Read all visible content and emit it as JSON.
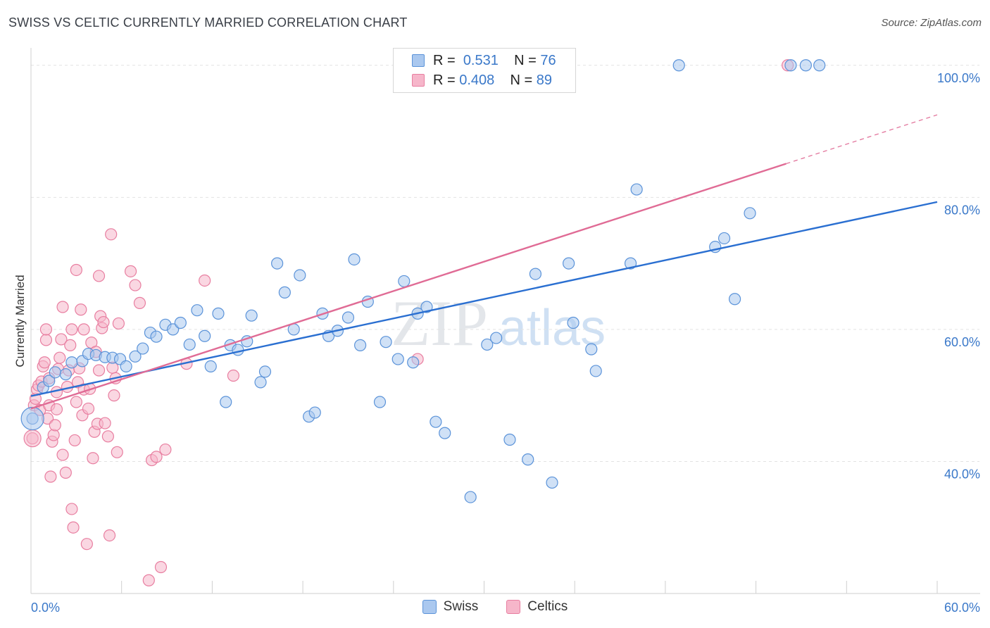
{
  "header": {
    "title": "SWISS VS CELTIC CURRENTLY MARRIED CORRELATION CHART",
    "source": "Source: ZipAtlas.com"
  },
  "legend": {
    "swiss": {
      "r_label": "R =",
      "r_value": "0.531",
      "n_label": "N =",
      "n_value": "76"
    },
    "celtics": {
      "r_label": "R =",
      "r_value": "0.408",
      "n_label": "N =",
      "n_value": "89"
    }
  },
  "bottom_legend": {
    "swiss": "Swiss",
    "celtics": "Celtics"
  },
  "watermark": {
    "zip": "ZIP",
    "atlas": "atlas"
  },
  "colors": {
    "swiss_fill": "#aac8ef",
    "swiss_stroke": "#5b93d9",
    "swiss_line": "#2a6fd1",
    "celtics_fill": "#f6b6ca",
    "celtics_stroke": "#e87ea0",
    "celtics_line": "#e06b95",
    "axis_text": "#3a78c9"
  },
  "chart_data": {
    "type": "scatter",
    "title": "SWISS VS CELTIC CURRENTLY MARRIED CORRELATION CHART",
    "xlabel": "",
    "ylabel": "Currently Married",
    "xlim": [
      0,
      60
    ],
    "ylim": [
      20,
      102
    ],
    "x_tick_labels": [
      "0.0%",
      "60.0%"
    ],
    "y_ticks": [
      40,
      60,
      80,
      100
    ],
    "y_tick_labels": [
      "40.0%",
      "60.0%",
      "80.0%",
      "100.0%"
    ],
    "grid": true,
    "legend_position": "top-center",
    "series": [
      {
        "name": "Swiss",
        "r": 0.531,
        "n": 76,
        "trend": {
          "x0": 0,
          "y0": 49.9,
          "x1": 60,
          "y1": 79.3
        },
        "points": [
          [
            0.1,
            46.5
          ],
          [
            0.8,
            51.2
          ],
          [
            1.2,
            52.2
          ],
          [
            1.6,
            53.5
          ],
          [
            2.3,
            53.2
          ],
          [
            2.7,
            55.0
          ],
          [
            3.4,
            55.2
          ],
          [
            3.8,
            56.3
          ],
          [
            4.3,
            56.1
          ],
          [
            4.9,
            55.8
          ],
          [
            5.4,
            55.7
          ],
          [
            5.9,
            55.5
          ],
          [
            6.3,
            54.4
          ],
          [
            6.9,
            55.9
          ],
          [
            7.4,
            57.1
          ],
          [
            7.9,
            59.5
          ],
          [
            8.3,
            58.9
          ],
          [
            8.9,
            60.7
          ],
          [
            9.4,
            60.0
          ],
          [
            9.9,
            61.0
          ],
          [
            10.5,
            57.7
          ],
          [
            11.0,
            62.9
          ],
          [
            11.5,
            59.0
          ],
          [
            11.9,
            54.4
          ],
          [
            12.4,
            62.4
          ],
          [
            12.9,
            49.0
          ],
          [
            13.2,
            57.6
          ],
          [
            13.7,
            56.9
          ],
          [
            14.3,
            58.2
          ],
          [
            14.6,
            62.1
          ],
          [
            15.2,
            52.0
          ],
          [
            15.5,
            53.6
          ],
          [
            16.3,
            70.0
          ],
          [
            16.8,
            65.6
          ],
          [
            17.4,
            60.0
          ],
          [
            17.8,
            68.2
          ],
          [
            18.4,
            46.8
          ],
          [
            18.8,
            47.4
          ],
          [
            19.3,
            62.4
          ],
          [
            19.7,
            59.0
          ],
          [
            20.3,
            59.8
          ],
          [
            21.0,
            61.8
          ],
          [
            21.4,
            70.6
          ],
          [
            21.8,
            57.6
          ],
          [
            22.3,
            64.2
          ],
          [
            23.1,
            49.0
          ],
          [
            23.5,
            58.1
          ],
          [
            24.3,
            55.5
          ],
          [
            24.7,
            67.3
          ],
          [
            25.3,
            55.0
          ],
          [
            25.6,
            62.4
          ],
          [
            26.2,
            63.4
          ],
          [
            26.8,
            46.0
          ],
          [
            27.4,
            44.3
          ],
          [
            29.1,
            34.6
          ],
          [
            30.2,
            57.7
          ],
          [
            30.8,
            58.7
          ],
          [
            31.7,
            43.3
          ],
          [
            32.9,
            40.3
          ],
          [
            33.4,
            68.4
          ],
          [
            34.5,
            36.8
          ],
          [
            35.6,
            70.0
          ],
          [
            35.9,
            61.0
          ],
          [
            37.1,
            57.0
          ],
          [
            37.4,
            53.7
          ],
          [
            39.7,
            70.0
          ],
          [
            40.1,
            81.2
          ],
          [
            42.9,
            100.0
          ],
          [
            45.3,
            72.5
          ],
          [
            45.9,
            73.8
          ],
          [
            46.6,
            64.6
          ],
          [
            47.6,
            77.6
          ],
          [
            50.3,
            100.0
          ],
          [
            51.3,
            100.0
          ],
          [
            52.2,
            100.0
          ]
        ]
      },
      {
        "name": "Celtics",
        "r": 0.408,
        "n": 89,
        "trend": {
          "x0": 0,
          "y0": 48.0,
          "x1": 50.0,
          "y1": 85.1,
          "dashed_to_x": 60,
          "dashed_to_y": 92.5
        },
        "points": [
          [
            0.1,
            43.5
          ],
          [
            0.2,
            48.5
          ],
          [
            0.3,
            49.5
          ],
          [
            0.4,
            50.9
          ],
          [
            0.5,
            51.5
          ],
          [
            0.6,
            47.8
          ],
          [
            0.7,
            52.1
          ],
          [
            0.8,
            54.4
          ],
          [
            0.9,
            55.0
          ],
          [
            1.0,
            58.4
          ],
          [
            1.0,
            60.0
          ],
          [
            1.1,
            46.5
          ],
          [
            1.2,
            48.5
          ],
          [
            1.2,
            52.6
          ],
          [
            1.3,
            37.7
          ],
          [
            1.4,
            43.0
          ],
          [
            1.5,
            44.0
          ],
          [
            1.6,
            45.5
          ],
          [
            1.7,
            47.9
          ],
          [
            1.7,
            50.5
          ],
          [
            1.8,
            54.0
          ],
          [
            1.9,
            55.7
          ],
          [
            2.0,
            58.5
          ],
          [
            2.1,
            63.4
          ],
          [
            2.1,
            41.0
          ],
          [
            2.3,
            38.3
          ],
          [
            2.4,
            51.3
          ],
          [
            2.5,
            53.8
          ],
          [
            2.6,
            57.6
          ],
          [
            2.7,
            60.0
          ],
          [
            2.7,
            32.8
          ],
          [
            2.8,
            30.0
          ],
          [
            2.9,
            43.2
          ],
          [
            3.0,
            49.0
          ],
          [
            3.0,
            69.0
          ],
          [
            3.1,
            52.0
          ],
          [
            3.2,
            54.1
          ],
          [
            3.3,
            63.0
          ],
          [
            3.4,
            47.0
          ],
          [
            3.5,
            50.9
          ],
          [
            3.5,
            60.0
          ],
          [
            3.7,
            27.5
          ],
          [
            3.8,
            48.0
          ],
          [
            3.9,
            51.0
          ],
          [
            4.0,
            58.0
          ],
          [
            4.1,
            40.5
          ],
          [
            4.2,
            44.5
          ],
          [
            4.3,
            56.6
          ],
          [
            4.4,
            45.7
          ],
          [
            4.5,
            53.8
          ],
          [
            4.5,
            68.1
          ],
          [
            4.6,
            62.0
          ],
          [
            4.7,
            60.2
          ],
          [
            4.8,
            61.1
          ],
          [
            4.9,
            45.8
          ],
          [
            5.1,
            43.8
          ],
          [
            5.2,
            28.8
          ],
          [
            5.3,
            74.4
          ],
          [
            5.4,
            54.2
          ],
          [
            5.5,
            50.0
          ],
          [
            5.6,
            52.6
          ],
          [
            5.7,
            41.4
          ],
          [
            5.8,
            60.9
          ],
          [
            6.6,
            68.8
          ],
          [
            6.9,
            66.7
          ],
          [
            7.2,
            64.0
          ],
          [
            7.8,
            22.0
          ],
          [
            8.0,
            40.2
          ],
          [
            8.3,
            40.7
          ],
          [
            8.6,
            24.0
          ],
          [
            8.9,
            41.8
          ],
          [
            10.3,
            54.8
          ],
          [
            11.5,
            67.4
          ],
          [
            13.4,
            53.0
          ],
          [
            25.6,
            55.5
          ],
          [
            50.1,
            100.0
          ]
        ]
      }
    ]
  }
}
